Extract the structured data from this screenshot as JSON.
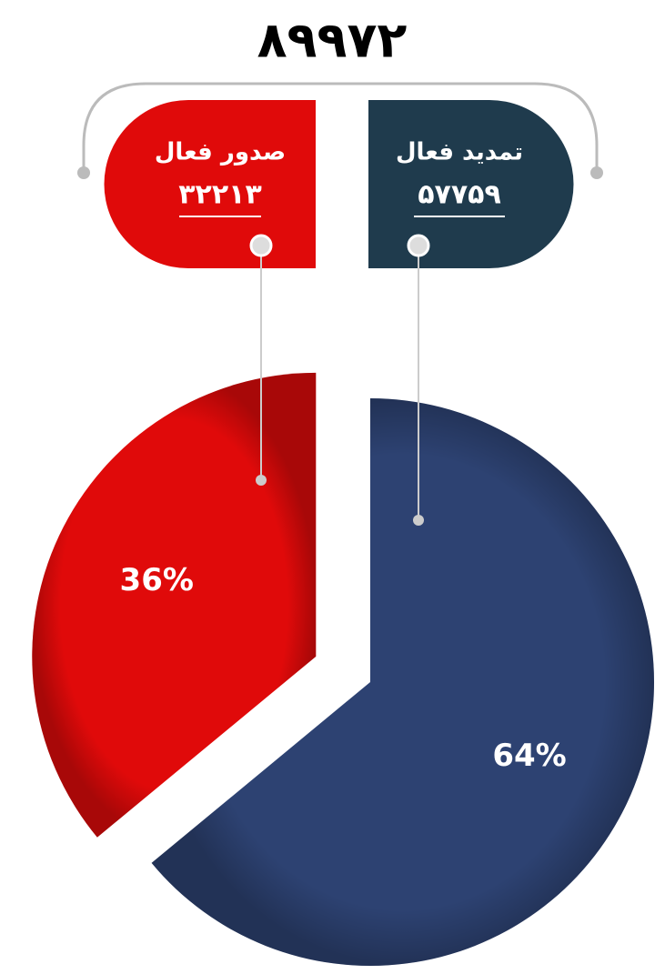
{
  "chart_data": {
    "type": "pie",
    "title": "۸۹۹۷۲",
    "categories": [
      "تمدید فعال",
      "صدور فعال"
    ],
    "counts": [
      "۵۷۷۵۹",
      "۳۲۲۱۳"
    ],
    "values": [
      64,
      36
    ],
    "value_labels": [
      "64%",
      "36%"
    ],
    "colors": [
      "#2d4272",
      "#e00a0a"
    ]
  }
}
